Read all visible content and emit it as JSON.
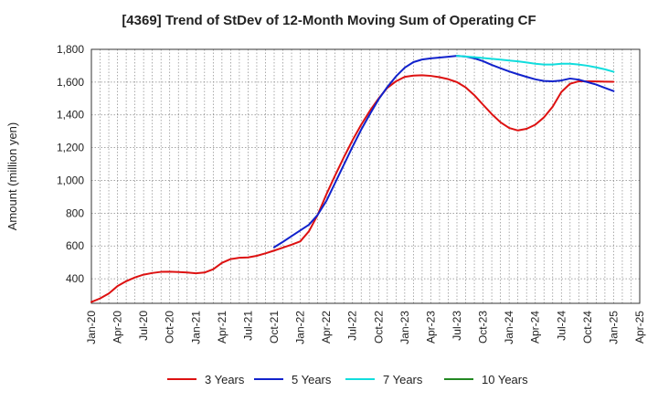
{
  "chart_data": {
    "type": "line",
    "title": "[4369]  Trend of StDev of 12-Month Moving Sum of Operating CF",
    "xlabel": "",
    "ylabel": "Amount (million yen)",
    "ylim": [
      250,
      1800
    ],
    "yticks": [
      400,
      600,
      800,
      1000,
      1200,
      1400,
      1600,
      1800
    ],
    "ytick_labels": [
      "400",
      "600",
      "800",
      "1,000",
      "1,200",
      "1,400",
      "1,600",
      "1,800"
    ],
    "xticks": [
      "Jan-20",
      "Apr-20",
      "Jul-20",
      "Oct-20",
      "Jan-21",
      "Apr-21",
      "Jul-21",
      "Oct-21",
      "Jan-22",
      "Apr-22",
      "Jul-22",
      "Oct-22",
      "Jan-23",
      "Apr-23",
      "Jul-23",
      "Oct-23",
      "Jan-24",
      "Apr-24",
      "Jul-24",
      "Oct-24",
      "Jan-25",
      "Apr-25"
    ],
    "grid": true,
    "legend_position": "bottom",
    "series": [
      {
        "name": "3 Years",
        "color": "#dd1111",
        "points": [
          [
            "Jan-20",
            258
          ],
          [
            "Feb-20",
            280
          ],
          [
            "Mar-20",
            310
          ],
          [
            "Apr-20",
            355
          ],
          [
            "May-20",
            385
          ],
          [
            "Jun-20",
            408
          ],
          [
            "Jul-20",
            425
          ],
          [
            "Aug-20",
            435
          ],
          [
            "Sep-20",
            442
          ],
          [
            "Oct-20",
            443
          ],
          [
            "Nov-20",
            441
          ],
          [
            "Dec-20",
            438
          ],
          [
            "Jan-21",
            433
          ],
          [
            "Feb-21",
            438
          ],
          [
            "Mar-21",
            458
          ],
          [
            "Apr-21",
            497
          ],
          [
            "May-21",
            520
          ],
          [
            "Jun-21",
            528
          ],
          [
            "Jul-21",
            530
          ],
          [
            "Aug-21",
            540
          ],
          [
            "Sep-21",
            555
          ],
          [
            "Oct-21",
            572
          ],
          [
            "Nov-21",
            590
          ],
          [
            "Dec-21",
            608
          ],
          [
            "Jan-22",
            628
          ],
          [
            "Feb-22",
            690
          ],
          [
            "Mar-22",
            790
          ],
          [
            "Apr-22",
            915
          ],
          [
            "May-22",
            1030
          ],
          [
            "Jun-22",
            1140
          ],
          [
            "Jul-22",
            1245
          ],
          [
            "Aug-22",
            1340
          ],
          [
            "Sep-22",
            1425
          ],
          [
            "Oct-22",
            1500
          ],
          [
            "Nov-22",
            1565
          ],
          [
            "Dec-22",
            1605
          ],
          [
            "Jan-23",
            1632
          ],
          [
            "Feb-23",
            1640
          ],
          [
            "Mar-23",
            1642
          ],
          [
            "Apr-23",
            1638
          ],
          [
            "May-23",
            1630
          ],
          [
            "Jun-23",
            1618
          ],
          [
            "Jul-23",
            1600
          ],
          [
            "Aug-23",
            1568
          ],
          [
            "Sep-23",
            1520
          ],
          [
            "Oct-23",
            1462
          ],
          [
            "Nov-23",
            1405
          ],
          [
            "Dec-23",
            1355
          ],
          [
            "Jan-24",
            1320
          ],
          [
            "Feb-24",
            1305
          ],
          [
            "Mar-24",
            1315
          ],
          [
            "Apr-24",
            1340
          ],
          [
            "May-24",
            1385
          ],
          [
            "Jun-24",
            1450
          ],
          [
            "Jul-24",
            1540
          ],
          [
            "Aug-24",
            1590
          ],
          [
            "Sep-24",
            1605
          ],
          [
            "Oct-24",
            1605
          ],
          [
            "Nov-24",
            1604
          ],
          [
            "Dec-24",
            1603
          ],
          [
            "Jan-25",
            1602
          ]
        ]
      },
      {
        "name": "5 Years",
        "color": "#1122cc",
        "points": [
          [
            "Oct-21",
            592
          ],
          [
            "Nov-21",
            625
          ],
          [
            "Dec-21",
            660
          ],
          [
            "Jan-22",
            695
          ],
          [
            "Feb-22",
            730
          ],
          [
            "Mar-22",
            790
          ],
          [
            "Apr-22",
            875
          ],
          [
            "May-22",
            985
          ],
          [
            "Jun-22",
            1095
          ],
          [
            "Jul-22",
            1205
          ],
          [
            "Aug-22",
            1310
          ],
          [
            "Sep-22",
            1405
          ],
          [
            "Oct-22",
            1495
          ],
          [
            "Nov-22",
            1570
          ],
          [
            "Dec-22",
            1635
          ],
          [
            "Jan-23",
            1688
          ],
          [
            "Feb-23",
            1722
          ],
          [
            "Mar-23",
            1738
          ],
          [
            "Apr-23",
            1745
          ],
          [
            "May-23",
            1750
          ],
          [
            "Jun-23",
            1755
          ],
          [
            "Jul-23",
            1760
          ],
          [
            "Aug-23",
            1756
          ],
          [
            "Sep-23",
            1745
          ],
          [
            "Oct-23",
            1728
          ],
          [
            "Nov-23",
            1705
          ],
          [
            "Dec-23",
            1685
          ],
          [
            "Jan-24",
            1665
          ],
          [
            "Feb-24",
            1648
          ],
          [
            "Mar-24",
            1632
          ],
          [
            "Apr-24",
            1617
          ],
          [
            "May-24",
            1607
          ],
          [
            "Jun-24",
            1605
          ],
          [
            "Jul-24",
            1610
          ],
          [
            "Aug-24",
            1622
          ],
          [
            "Sep-24",
            1615
          ],
          [
            "Oct-24",
            1600
          ],
          [
            "Nov-24",
            1585
          ],
          [
            "Dec-24",
            1565
          ],
          [
            "Jan-25",
            1545
          ]
        ]
      },
      {
        "name": "7 Years",
        "color": "#11dddd",
        "points": [
          [
            "Jul-23",
            1760
          ],
          [
            "Aug-23",
            1756
          ],
          [
            "Sep-23",
            1752
          ],
          [
            "Oct-23",
            1747
          ],
          [
            "Nov-23",
            1742
          ],
          [
            "Dec-23",
            1737
          ],
          [
            "Jan-24",
            1732
          ],
          [
            "Feb-24",
            1727
          ],
          [
            "Mar-24",
            1720
          ],
          [
            "Apr-24",
            1712
          ],
          [
            "May-24",
            1707
          ],
          [
            "Jun-24",
            1707
          ],
          [
            "Jul-24",
            1712
          ],
          [
            "Aug-24",
            1712
          ],
          [
            "Sep-24",
            1707
          ],
          [
            "Oct-24",
            1700
          ],
          [
            "Nov-24",
            1690
          ],
          [
            "Dec-24",
            1678
          ],
          [
            "Jan-25",
            1663
          ]
        ]
      },
      {
        "name": "10 Years",
        "color": "#228822",
        "points": []
      }
    ]
  }
}
